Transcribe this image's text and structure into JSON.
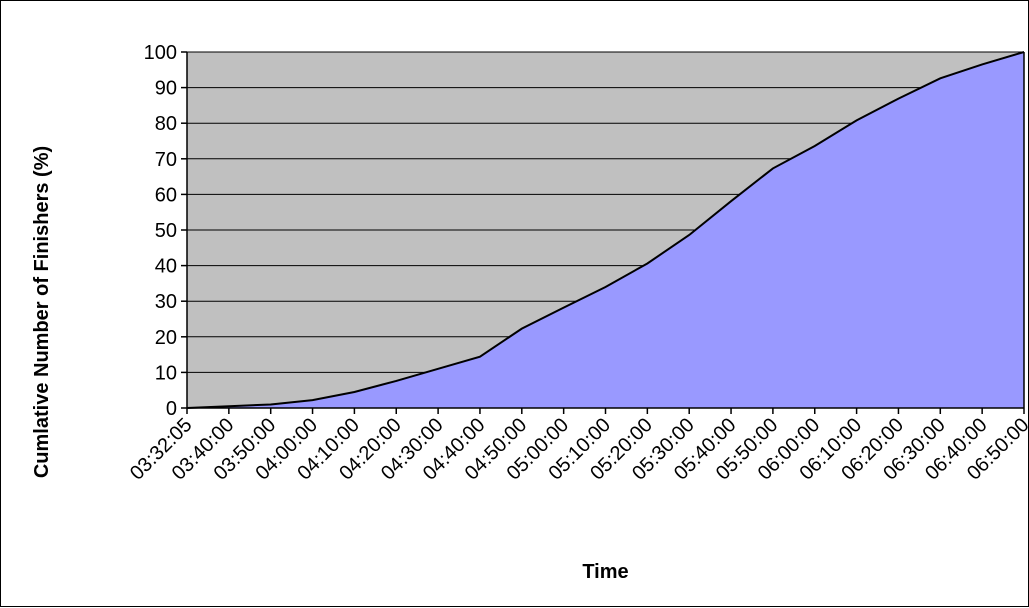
{
  "chart_data": {
    "type": "area",
    "title": "",
    "xlabel": "Time",
    "ylabel": "Cumlative Number of Finishers (%)",
    "x": [
      "03:32:05",
      "03:40:00",
      "03:50:00",
      "04:00:00",
      "04:10:00",
      "04:20:00",
      "04:30:00",
      "04:40:00",
      "04:50:00",
      "05:00:00",
      "05:10:00",
      "05:20:00",
      "05:30:00",
      "05:40:00",
      "05:50:00",
      "06:00:00",
      "06:10:00",
      "06:20:00",
      "06:30:00",
      "06:40:00",
      "06:50:00"
    ],
    "y_ticks": [
      0,
      10,
      20,
      30,
      40,
      50,
      60,
      70,
      80,
      90,
      100
    ],
    "ylim": [
      0,
      100
    ],
    "series": [
      {
        "values": [
          0,
          0.5,
          1,
          2.2,
          4.5,
          7.6,
          11,
          14.4,
          22.3,
          28.2,
          34,
          40.6,
          48.6,
          58.1,
          67.3,
          73.6,
          80.8,
          86.9,
          92.6,
          96.5,
          100
        ]
      }
    ],
    "grid": true,
    "legend": "none",
    "colors": {
      "area_fill": "#9999ff",
      "plot_background": "#c0c0c0",
      "line": "#000000",
      "gridline": "#000000"
    }
  }
}
